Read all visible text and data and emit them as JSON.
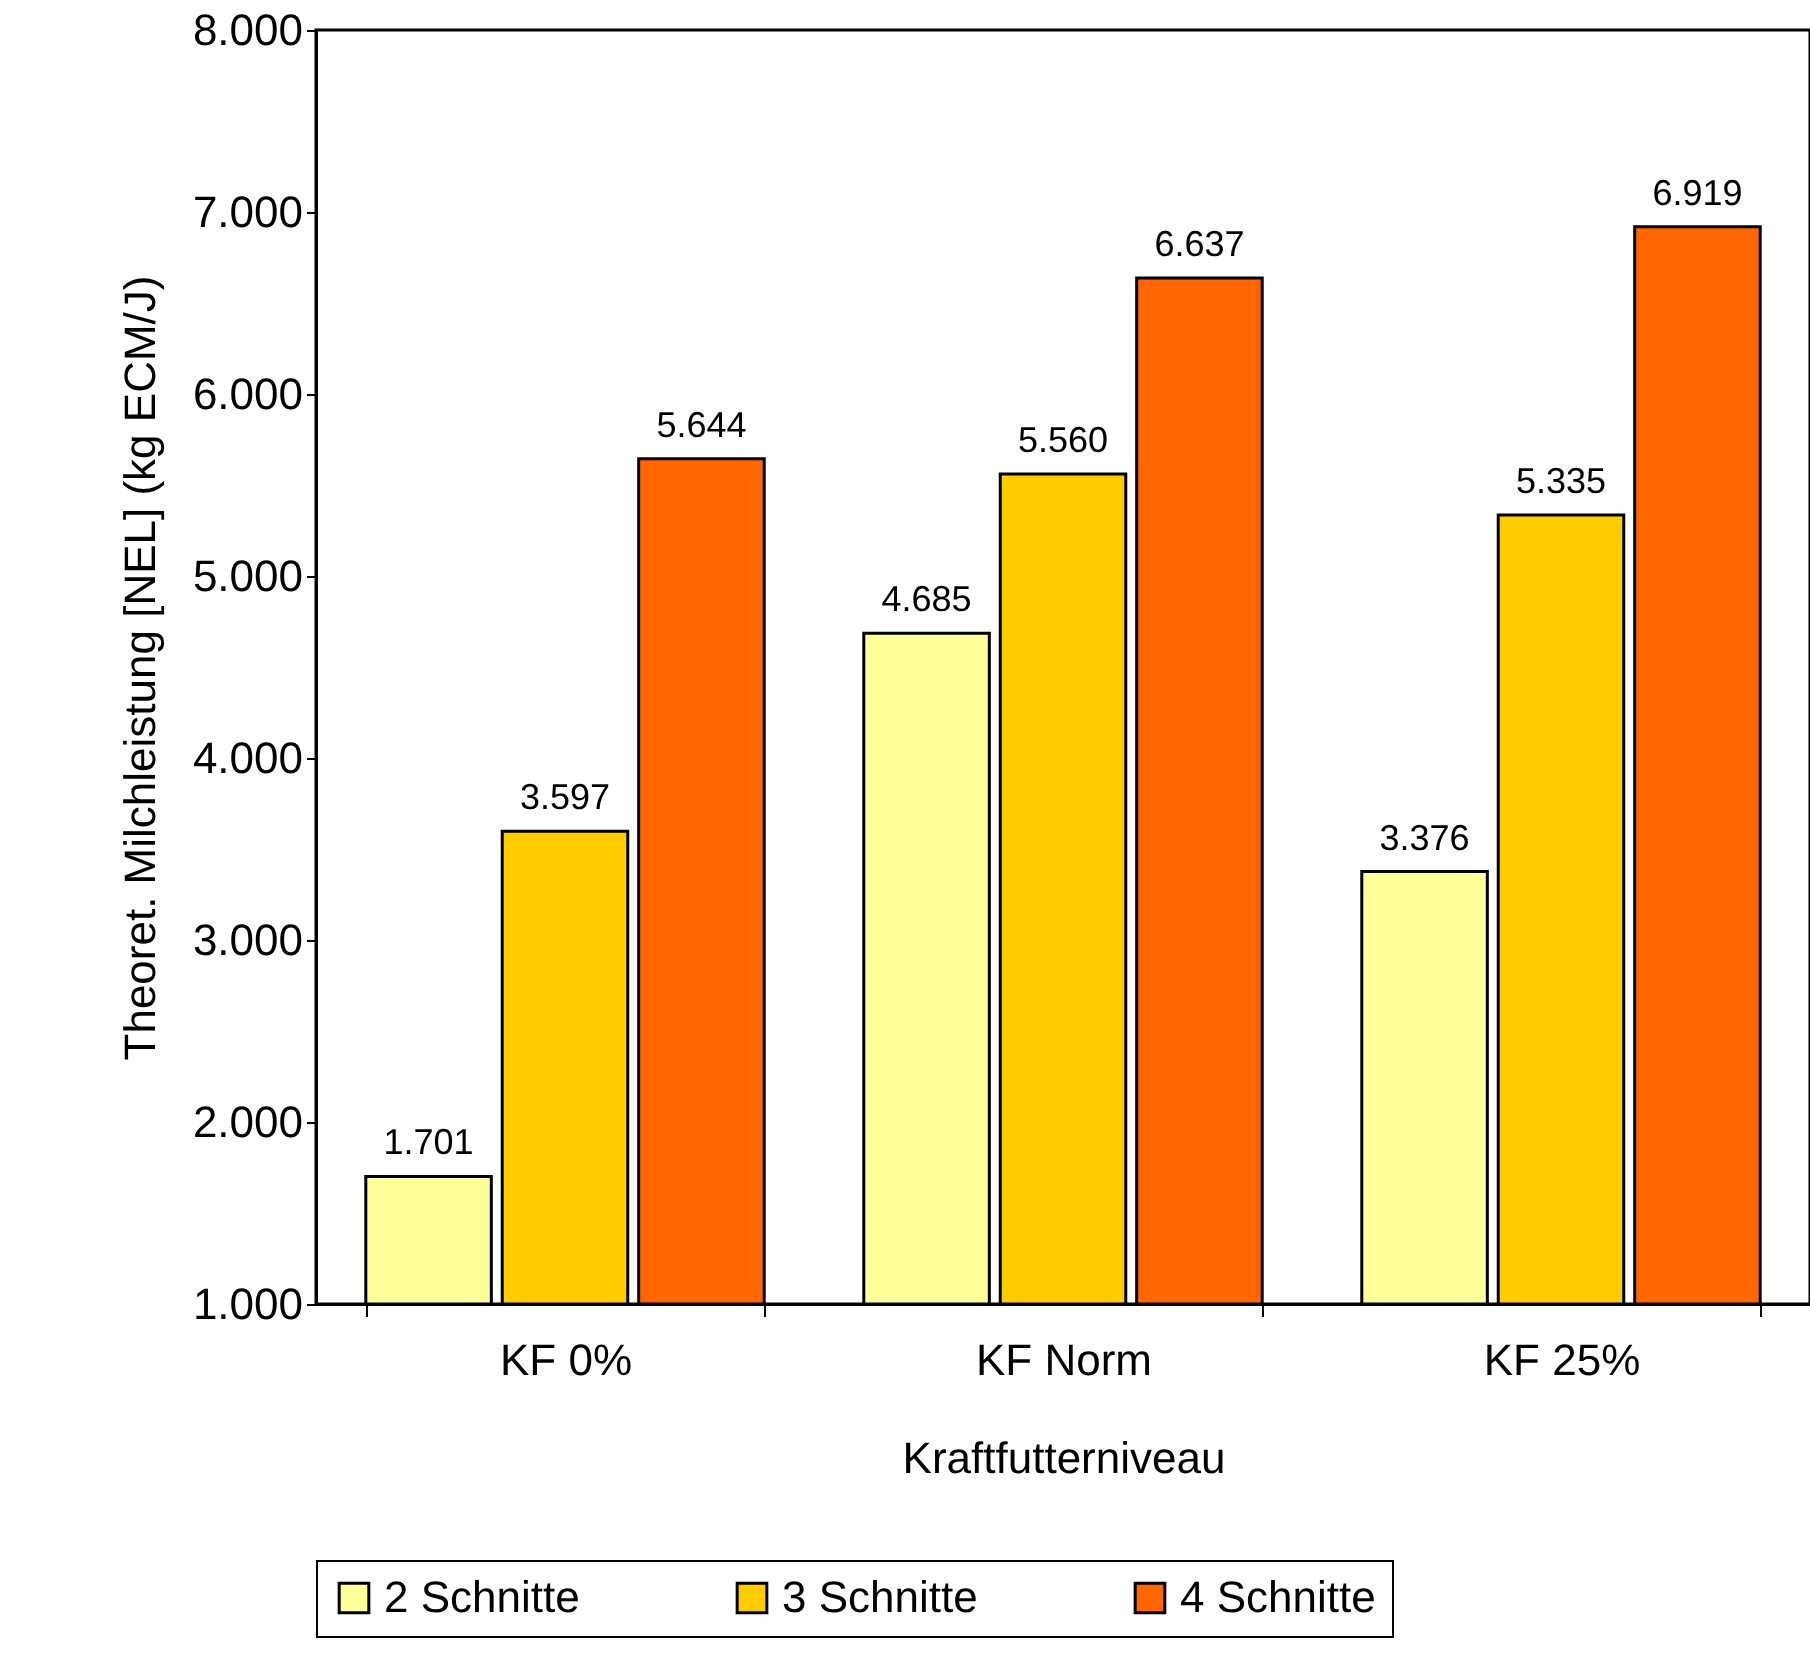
{
  "chart_data": {
    "type": "bar",
    "xlabel": "Kraftfutterniveau",
    "ylabel": "Theoret. Milchleistung [NEL] (kg ECM/J)",
    "categories": [
      "KF 0%",
      "KF Norm",
      "KF 25%"
    ],
    "series": [
      {
        "name": "2 Schnitte",
        "color": "#ffff99",
        "values": [
          1701,
          4685,
          3376
        ],
        "value_labels": [
          "1.701",
          "4.685",
          "3.376"
        ]
      },
      {
        "name": "3 Schnitte",
        "color": "#ffcc00",
        "values": [
          3597,
          5560,
          5335
        ],
        "value_labels": [
          "3.597",
          "5.560",
          "5.335"
        ]
      },
      {
        "name": "4 Schnitte",
        "color": "#ff6600",
        "values": [
          5644,
          6637,
          6919
        ],
        "value_labels": [
          "5.644",
          "6.637",
          "6.919"
        ]
      }
    ],
    "ylim": [
      1000,
      8000
    ],
    "yticks": [
      {
        "value": 1000,
        "label": "1.000"
      },
      {
        "value": 2000,
        "label": "2.000"
      },
      {
        "value": 3000,
        "label": "3.000"
      },
      {
        "value": 4000,
        "label": "4.000"
      },
      {
        "value": 5000,
        "label": "5.000"
      },
      {
        "value": 6000,
        "label": "6.000"
      },
      {
        "value": 7000,
        "label": "7.000"
      },
      {
        "value": 8000,
        "label": "8.000"
      }
    ],
    "grid": false,
    "legend": "bottom"
  }
}
